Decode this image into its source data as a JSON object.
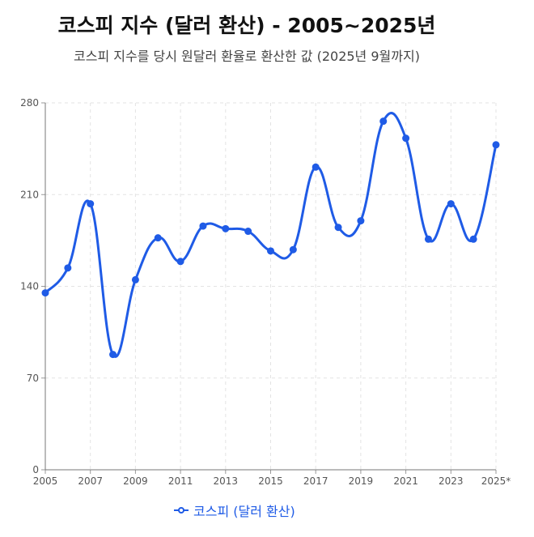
{
  "chart_data": {
    "type": "line",
    "title": "코스피 지수 (달러 환산) - 2005~2025년",
    "subtitle": "코스피 지수를 당시 원달러 환율로 환산한 값 (2025년 9월까지)",
    "x": [
      "2005",
      "2006",
      "2007",
      "2008",
      "2009",
      "2010",
      "2011",
      "2012",
      "2013",
      "2014",
      "2015",
      "2016",
      "2017",
      "2018",
      "2019",
      "2020",
      "2021",
      "2022",
      "2023",
      "2024",
      "2025*"
    ],
    "x_tick_labels": [
      "2005",
      "2007",
      "2009",
      "2011",
      "2013",
      "2015",
      "2017",
      "2019",
      "2021",
      "2023",
      "2025*"
    ],
    "series": [
      {
        "name": "코스피 (달러 환산)",
        "color": "#1f5be6",
        "values": [
          135,
          154,
          203,
          88,
          145,
          177,
          159,
          186,
          184,
          182,
          167,
          168,
          231,
          185,
          190,
          266,
          253,
          176,
          203,
          176,
          248
        ]
      }
    ],
    "ylim": [
      0,
      280
    ],
    "yticks": [
      0,
      70,
      140,
      210,
      280
    ],
    "grid": true,
    "legend": "bottom"
  }
}
